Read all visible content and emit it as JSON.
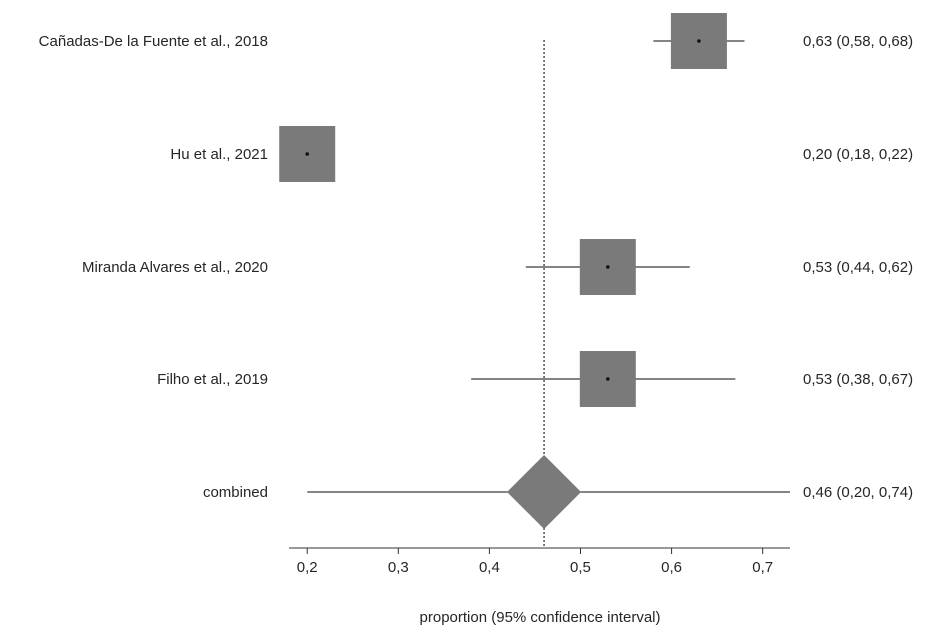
{
  "chart_data": {
    "type": "forest",
    "xlabel": "proportion (95% confidence interval)",
    "xlim": [
      0.18,
      0.73
    ],
    "x_ticks": [
      {
        "value": 0.2,
        "label": "0,2"
      },
      {
        "value": 0.3,
        "label": "0,3"
      },
      {
        "value": 0.4,
        "label": "0,4"
      },
      {
        "value": 0.5,
        "label": "0,5"
      },
      {
        "value": 0.6,
        "label": "0,6"
      },
      {
        "value": 0.7,
        "label": "0,7"
      }
    ],
    "studies": [
      {
        "label": "Cañadas-De la Fuente et al., 2018",
        "estimate": 0.63,
        "lower": 0.58,
        "upper": 0.68,
        "estimate_text": "0,63 (0,58, 0,68)"
      },
      {
        "label": "Hu et al., 2021",
        "estimate": 0.2,
        "lower": 0.18,
        "upper": 0.22,
        "estimate_text": "0,20 (0,18, 0,22)"
      },
      {
        "label": "Miranda Alvares et al., 2020",
        "estimate": 0.53,
        "lower": 0.44,
        "upper": 0.62,
        "estimate_text": "0,53 (0,44, 0,62)"
      },
      {
        "label": "Filho et al., 2019",
        "estimate": 0.53,
        "lower": 0.38,
        "upper": 0.67,
        "estimate_text": "0,53 (0,38, 0,67)"
      }
    ],
    "combined": {
      "label": "combined",
      "estimate": 0.46,
      "lower": 0.2,
      "upper": 0.74,
      "estimate_text": "0,46 (0,20, 0,74)"
    },
    "colors": {
      "marker": "#7a7a7a",
      "line": "#3a3a3a",
      "text": "#262626"
    }
  }
}
